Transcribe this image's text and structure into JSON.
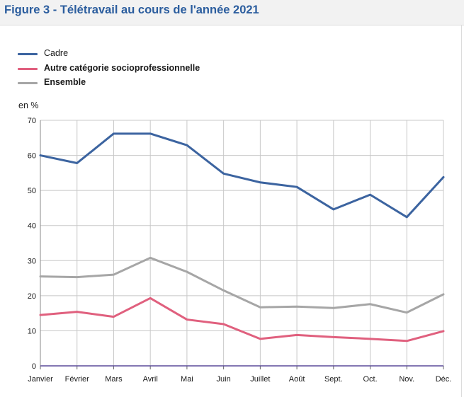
{
  "header": {
    "title": "Figure 3 - Télétravail au cours de l'année 2021"
  },
  "colors": {
    "title": "#2b5d9e",
    "grid": "#c8c8c8"
  },
  "chart_data": {
    "type": "line",
    "title": "Figure 3 - Télétravail au cours de l'année 2021",
    "ylabel": "en %",
    "xlabel": "",
    "categories": [
      "Janvier",
      "Février",
      "Mars",
      "Avril",
      "Mai",
      "Juin",
      "Juillet",
      "Août",
      "Sept.",
      "Oct.",
      "Nov.",
      "Déc."
    ],
    "ylim": [
      0,
      70
    ],
    "yticks": [
      0,
      10,
      20,
      30,
      40,
      50,
      60,
      70
    ],
    "grid": true,
    "legend_position": "top-left",
    "series": [
      {
        "name": "Cadre",
        "color": "#3c64a0",
        "bold": false,
        "values": [
          60.0,
          57.8,
          66.2,
          66.2,
          62.9,
          54.8,
          52.3,
          51.0,
          44.6,
          48.8,
          42.4,
          53.8
        ]
      },
      {
        "name": "Autre catégorie socioprofessionnelle",
        "color": "#e0607e",
        "bold": true,
        "values": [
          14.5,
          15.4,
          14.0,
          19.3,
          13.2,
          11.9,
          7.7,
          8.8,
          8.2,
          7.7,
          7.1,
          9.9
        ]
      },
      {
        "name": "Ensemble",
        "color": "#a6a6a6",
        "bold": true,
        "values": [
          25.5,
          25.3,
          26.0,
          30.8,
          26.8,
          21.5,
          16.7,
          16.9,
          16.5,
          17.6,
          15.2,
          20.4
        ]
      }
    ]
  }
}
